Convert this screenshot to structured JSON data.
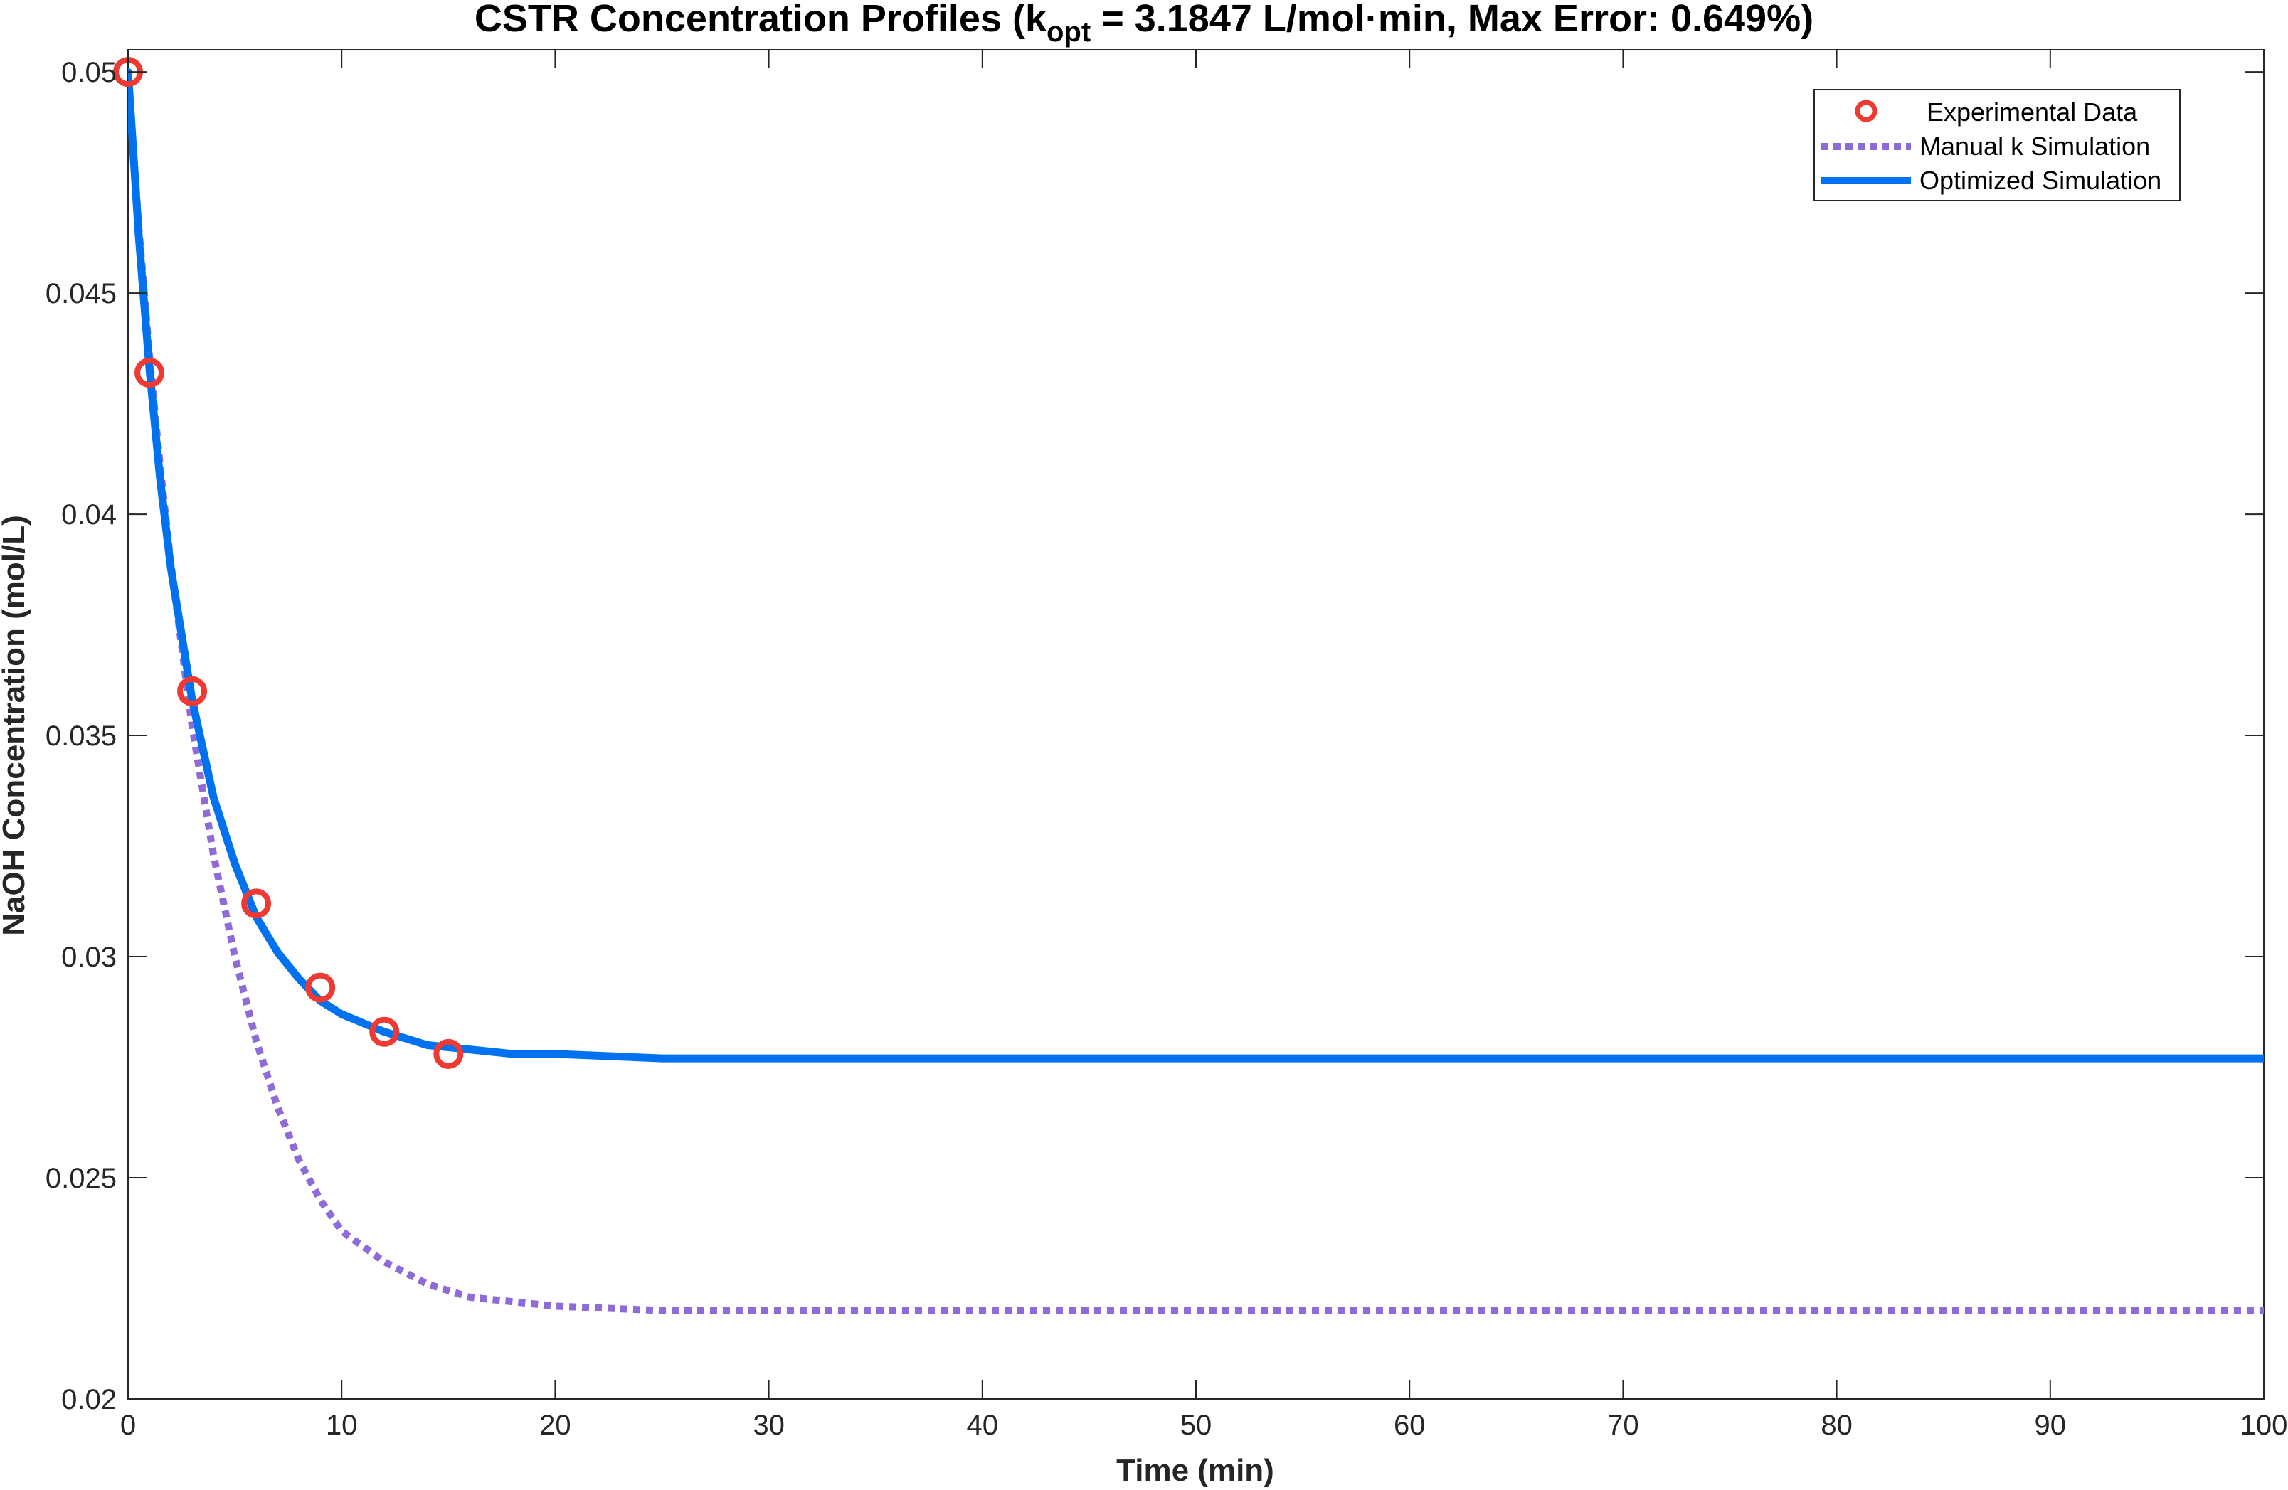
{
  "chart_data": {
    "type": "line",
    "title": {
      "prefix": "CSTR Concentration Profiles (k",
      "subscript": "opt",
      "suffix": " = 3.1847 L/mol·min, Max Error: 0.649%)"
    },
    "xlabel": "Time (min)",
    "ylabel": "NaOH Concentration (mol/L)",
    "xlim": [
      0,
      100
    ],
    "ylim": [
      0.02,
      0.0505
    ],
    "xticks": [
      0,
      10,
      20,
      30,
      40,
      50,
      60,
      70,
      80,
      90,
      100
    ],
    "xtick_labels": [
      "0",
      "10",
      "20",
      "30",
      "40",
      "50",
      "60",
      "70",
      "80",
      "90",
      "100"
    ],
    "yticks": [
      0.02,
      0.025,
      0.03,
      0.035,
      0.04,
      0.045,
      0.05
    ],
    "ytick_labels": [
      "0.02",
      "0.025",
      "0.03",
      "0.035",
      "0.04",
      "0.045",
      "0.05"
    ],
    "grid": false,
    "legend_position": "top-right",
    "series": [
      {
        "name": "Experimental Data",
        "kind": "scatter",
        "marker": "circle",
        "color": "#ee3a33",
        "x": [
          0,
          1,
          3,
          6,
          9,
          12,
          15
        ],
        "y": [
          0.05,
          0.0432,
          0.036,
          0.0312,
          0.0293,
          0.0283,
          0.0278
        ]
      },
      {
        "name": "Manual k Simulation",
        "kind": "line",
        "style": "dotted",
        "color": "#8e6bd6",
        "x": [
          0,
          0.5,
          1,
          1.5,
          2,
          3,
          4,
          5,
          6,
          7,
          8,
          9,
          10,
          12,
          14,
          16,
          18,
          20,
          25,
          30,
          40,
          50,
          60,
          70,
          80,
          90,
          100
        ],
        "y": [
          0.05,
          0.0465,
          0.0436,
          0.0411,
          0.0389,
          0.0352,
          0.0323,
          0.03,
          0.0281,
          0.0266,
          0.0254,
          0.0245,
          0.0238,
          0.0231,
          0.0226,
          0.0223,
          0.0222,
          0.0221,
          0.022,
          0.022,
          0.022,
          0.022,
          0.022,
          0.022,
          0.022,
          0.022,
          0.022
        ]
      },
      {
        "name": "Optimized Simulation",
        "kind": "line",
        "style": "solid",
        "color": "#0072f0",
        "x": [
          0,
          0.5,
          1,
          1.5,
          2,
          3,
          4,
          5,
          6,
          7,
          8,
          9,
          10,
          12,
          14,
          16,
          18,
          20,
          25,
          30,
          40,
          50,
          60,
          70,
          80,
          90,
          100
        ],
        "y": [
          0.05,
          0.0463,
          0.0433,
          0.0408,
          0.0388,
          0.0358,
          0.0336,
          0.0321,
          0.0309,
          0.0301,
          0.0295,
          0.029,
          0.0287,
          0.0283,
          0.028,
          0.0279,
          0.0278,
          0.0278,
          0.0277,
          0.0277,
          0.0277,
          0.0277,
          0.0277,
          0.0277,
          0.0277,
          0.0277,
          0.0277
        ]
      }
    ]
  }
}
